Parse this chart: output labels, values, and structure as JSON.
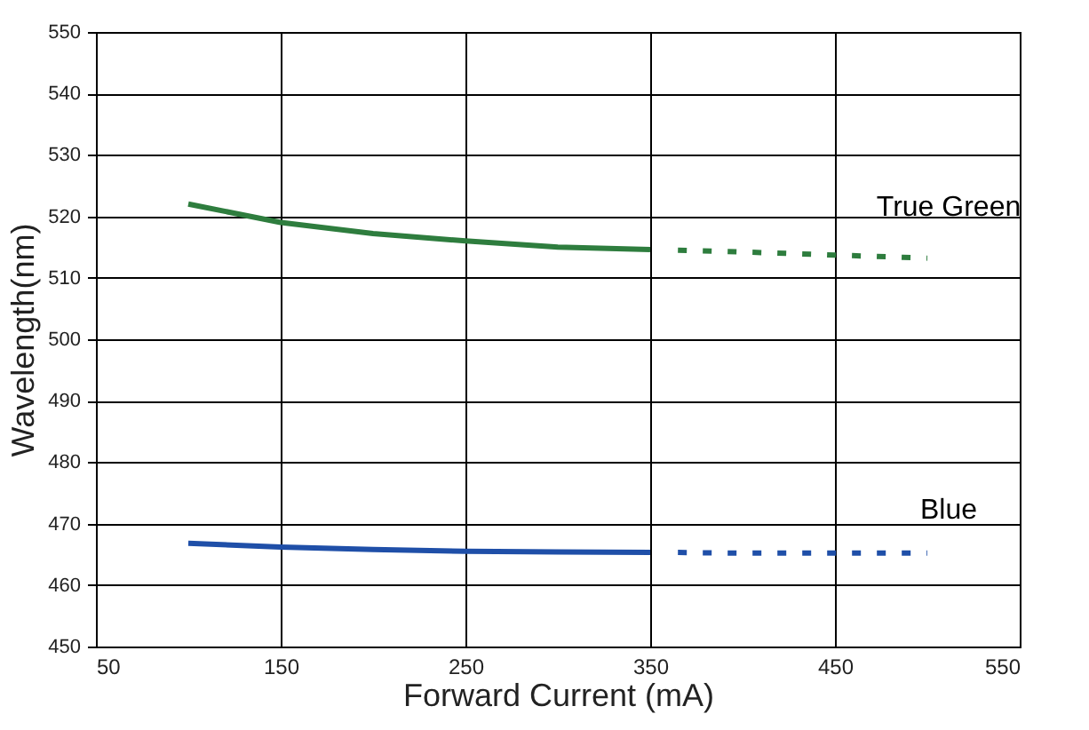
{
  "chart_data": {
    "type": "line",
    "xlabel": "Forward Current (mA)",
    "ylabel": "Wavelength(nm)",
    "xlim": [
      50,
      550
    ],
    "xticks": [
      50,
      150,
      250,
      350,
      450,
      550
    ],
    "ylim": [
      450,
      550
    ],
    "yticks": [
      450,
      460,
      470,
      480,
      490,
      500,
      510,
      520,
      530,
      540,
      550
    ],
    "grid": true,
    "legend": false,
    "series": [
      {
        "name": "True Green",
        "color": "#2e7d3e",
        "line_style": "solid",
        "x": [
          100,
          150,
          200,
          250,
          300,
          350
        ],
        "values": [
          522,
          519,
          517.2,
          516,
          515,
          514.6
        ]
      },
      {
        "color": "#2e7d3e",
        "line_style": "dotted",
        "x": [
          365,
          400,
          450,
          500
        ],
        "values": [
          514.5,
          514.2,
          513.7,
          513.2
        ]
      },
      {
        "name": "Blue",
        "color": "#1f4fa8",
        "line_style": "solid",
        "x": [
          100,
          150,
          200,
          250,
          300,
          350
        ],
        "values": [
          466.8,
          466.2,
          465.8,
          465.5,
          465.4,
          465.3
        ]
      },
      {
        "color": "#1f4fa8",
        "line_style": "dotted",
        "x": [
          365,
          400,
          450,
          500
        ],
        "values": [
          465.3,
          465.2,
          465.2,
          465.2
        ]
      }
    ]
  }
}
